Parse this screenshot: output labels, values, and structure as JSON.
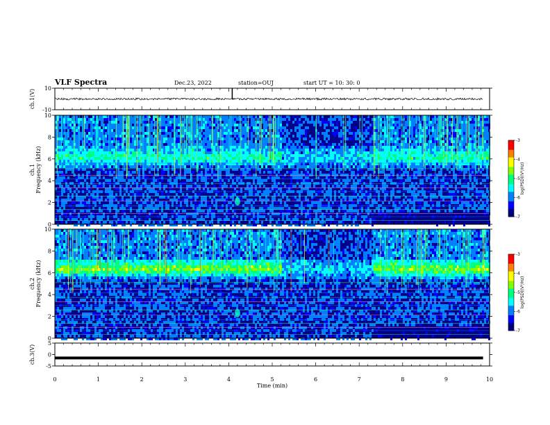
{
  "header": {
    "title": "VLF Spectra",
    "date": "Dec.23, 2022",
    "station": "station=OUJ",
    "start": "start  UT =   10: 30: 0"
  },
  "chart_data": [
    {
      "panel": "ch1-waveform",
      "type": "line",
      "ylabel": "ch.1(V)",
      "ylim": [
        -10,
        10
      ],
      "yticks": [
        "10",
        "-10"
      ],
      "xlim": [
        0,
        10
      ],
      "baseline": 0,
      "spikes": [
        {
          "x": 4.08,
          "y": 10
        }
      ]
    },
    {
      "panel": "ch1-spectrogram",
      "type": "heatmap",
      "ylabel": "ch.1\nFrequency  (kHz)",
      "ylim": [
        0,
        10
      ],
      "yticks": [
        "0",
        "2",
        "4",
        "6",
        "8",
        "10"
      ],
      "xlim": [
        0,
        10
      ],
      "colorbar": {
        "label": "log(PSD)(V²/Hz)",
        "range": [
          -7,
          -3
        ],
        "ticks": [
          "-3",
          "-4",
          "-5",
          "-6",
          "-7"
        ]
      },
      "features": {
        "band_center_khz": 6.3,
        "spot": {
          "x": 4.2,
          "y_khz": 2.1
        },
        "quiet_interval_min": [
          5.2,
          7.3
        ],
        "low_band_step_min": 7.3
      }
    },
    {
      "panel": "ch2-spectrogram",
      "type": "heatmap",
      "ylabel": "ch.2\nFrequency  (kHz)",
      "ylim": [
        0,
        10
      ],
      "yticks": [
        "0",
        "2",
        "4",
        "6",
        "8",
        "10"
      ],
      "xlim": [
        0,
        10
      ],
      "colorbar": {
        "label": "log(PSD)(V²/Hz)",
        "range": [
          -7,
          -3
        ],
        "ticks": [
          "-3",
          "-4",
          "-5",
          "-6",
          "-7"
        ]
      },
      "features": {
        "band_center_khz": 6.5,
        "spot": {
          "x": 4.2,
          "y_khz": 2.3
        },
        "quiet_interval_min": [
          5.2,
          7.3
        ],
        "low_band_step_min": 7.3
      }
    },
    {
      "panel": "ch3-waveform",
      "type": "line",
      "ylabel": "ch.3(V)",
      "ylim": [
        -5,
        5
      ],
      "yticks": [
        "5",
        "0",
        "-5"
      ],
      "xlim": [
        0,
        10
      ],
      "baseline": -1.5
    }
  ],
  "xaxis": {
    "label": "Time  (min)",
    "ticks": [
      "0",
      "1",
      "2",
      "3",
      "4",
      "5",
      "6",
      "7",
      "8",
      "9",
      "10"
    ]
  },
  "colors": {
    "colormap": [
      "#00007f",
      "#0000ff",
      "#0080ff",
      "#00ffff",
      "#00ff80",
      "#80ff00",
      "#ffff00",
      "#ff8000",
      "#ff0000",
      "#ffffff"
    ]
  }
}
